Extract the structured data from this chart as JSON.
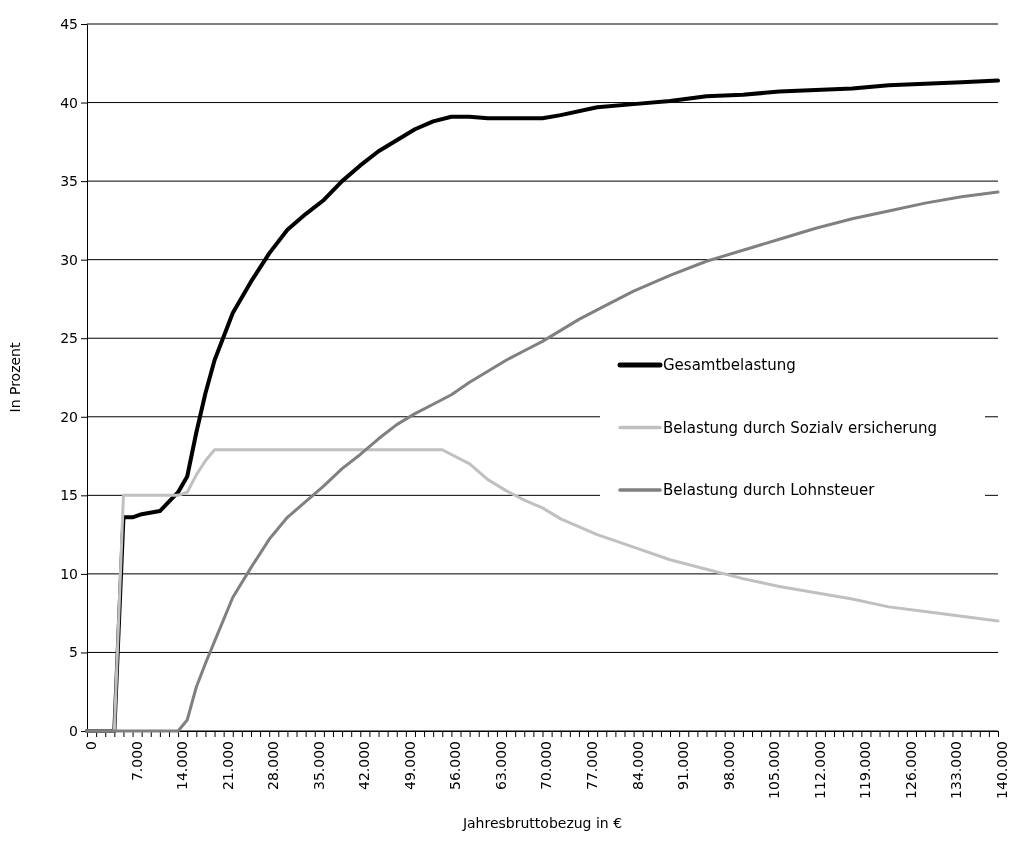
{
  "chart_data": {
    "type": "line",
    "xlabel": "Jahresbruttobezug in €",
    "ylabel": "In Prozent",
    "xlim": [
      0,
      140000
    ],
    "ylim": [
      0,
      45
    ],
    "yticks": [
      0,
      5,
      10,
      15,
      20,
      25,
      30,
      35,
      40,
      45
    ],
    "xticks": [
      0,
      {
        "value": 1400,
        "label": null
      },
      {
        "value": 2800,
        "label": null
      },
      {
        "value": 4200,
        "label": null
      },
      {
        "value": 5600,
        "label": null
      },
      {
        "value": 7000,
        "label": "7.000"
      },
      {
        "value": 8400,
        "label": null
      },
      {
        "value": 9800,
        "label": null
      },
      {
        "value": 11200,
        "label": null
      },
      {
        "value": 12600,
        "label": null
      },
      {
        "value": 14000,
        "label": "14.000"
      },
      {
        "value": 15400,
        "label": null
      },
      {
        "value": 16800,
        "label": null
      },
      {
        "value": 18200,
        "label": null
      },
      {
        "value": 19600,
        "label": null
      },
      {
        "value": 21000,
        "label": "21.000"
      },
      {
        "value": 22400,
        "label": null
      },
      {
        "value": 23800,
        "label": null
      },
      {
        "value": 25200,
        "label": null
      },
      {
        "value": 26600,
        "label": null
      },
      {
        "value": 28000,
        "label": "28.000"
      },
      {
        "value": 29400,
        "label": null
      },
      {
        "value": 30800,
        "label": null
      },
      {
        "value": 32200,
        "label": null
      },
      {
        "value": 33600,
        "label": null
      },
      {
        "value": 35000,
        "label": "35.000"
      },
      {
        "value": 36400,
        "label": null
      },
      {
        "value": 37800,
        "label": null
      },
      {
        "value": 39200,
        "label": null
      },
      {
        "value": 40600,
        "label": null
      },
      {
        "value": 42000,
        "label": "42.000"
      },
      {
        "value": 43400,
        "label": null
      },
      {
        "value": 44800,
        "label": null
      },
      {
        "value": 46200,
        "label": null
      },
      {
        "value": 47600,
        "label": null
      },
      {
        "value": 49000,
        "label": "49.000"
      },
      {
        "value": 50400,
        "label": null
      },
      {
        "value": 51800,
        "label": null
      },
      {
        "value": 53200,
        "label": null
      },
      {
        "value": 54600,
        "label": null
      },
      {
        "value": 56000,
        "label": "56.000"
      },
      {
        "value": 57400,
        "label": null
      },
      {
        "value": 58800,
        "label": null
      },
      {
        "value": 60200,
        "label": null
      },
      {
        "value": 61600,
        "label": null
      },
      {
        "value": 63000,
        "label": "63.000"
      },
      {
        "value": 64400,
        "label": null
      },
      {
        "value": 65800,
        "label": null
      },
      {
        "value": 67200,
        "label": null
      },
      {
        "value": 68600,
        "label": null
      },
      {
        "value": 70000,
        "label": "70.000"
      },
      {
        "value": 71400,
        "label": null
      },
      {
        "value": 72800,
        "label": null
      },
      {
        "value": 74200,
        "label": null
      },
      {
        "value": 75600,
        "label": null
      },
      {
        "value": 77000,
        "label": "77.000"
      },
      {
        "value": 78400,
        "label": null
      },
      {
        "value": 79800,
        "label": null
      },
      {
        "value": 81200,
        "label": null
      },
      {
        "value": 82600,
        "label": null
      },
      {
        "value": 84000,
        "label": "84.000"
      },
      {
        "value": 85400,
        "label": null
      },
      {
        "value": 86800,
        "label": null
      },
      {
        "value": 88200,
        "label": null
      },
      {
        "value": 89600,
        "label": null
      },
      {
        "value": 91000,
        "label": "91.000"
      },
      {
        "value": 92400,
        "label": null
      },
      {
        "value": 93800,
        "label": null
      },
      {
        "value": 95200,
        "label": null
      },
      {
        "value": 96600,
        "label": null
      },
      {
        "value": 98000,
        "label": "98.000"
      },
      {
        "value": 99400,
        "label": null
      },
      {
        "value": 100800,
        "label": null
      },
      {
        "value": 102200,
        "label": null
      },
      {
        "value": 103600,
        "label": null
      },
      {
        "value": 105000,
        "label": "105.000"
      },
      {
        "value": 106400,
        "label": null
      },
      {
        "value": 107800,
        "label": null
      },
      {
        "value": 109200,
        "label": null
      },
      {
        "value": 110600,
        "label": null
      },
      {
        "value": 112000,
        "label": "112.000"
      },
      {
        "value": 113400,
        "label": null
      },
      {
        "value": 114800,
        "label": null
      },
      {
        "value": 116200,
        "label": null
      },
      {
        "value": 117600,
        "label": null
      },
      {
        "value": 119000,
        "label": "119.000"
      },
      {
        "value": 120400,
        "label": null
      },
      {
        "value": 121800,
        "label": null
      },
      {
        "value": 123200,
        "label": null
      },
      {
        "value": 124600,
        "label": null
      },
      {
        "value": 126000,
        "label": "126.000"
      },
      {
        "value": 127400,
        "label": null
      },
      {
        "value": 128800,
        "label": null
      },
      {
        "value": 130200,
        "label": null
      },
      {
        "value": 131600,
        "label": null
      },
      {
        "value": 133000,
        "label": "133.000"
      },
      {
        "value": 134400,
        "label": null
      },
      {
        "value": 135800,
        "label": null
      },
      {
        "value": 137200,
        "label": null
      },
      {
        "value": 138600,
        "label": null
      },
      {
        "value": 140000,
        "label": "140.000"
      }
    ],
    "grid": "y",
    "legend": "right",
    "series": [
      {
        "name": "Gesamtbelastung",
        "color": "#000000",
        "x": [
          0,
          4200,
          5600,
          7000,
          8400,
          11200,
          12600,
          14000,
          15400,
          16800,
          18200,
          19600,
          22400,
          25200,
          28000,
          30800,
          33600,
          36400,
          39200,
          42000,
          44800,
          47600,
          50400,
          53200,
          56000,
          58800,
          61600,
          70000,
          72800,
          78400,
          84000,
          89600,
          95200,
          100800,
          106400,
          112000,
          117600,
          123200,
          128800,
          134400,
          140000
        ],
        "values": [
          0,
          0,
          13.6,
          13.6,
          13.8,
          14.0,
          14.6,
          15.2,
          16.2,
          19.0,
          21.5,
          23.6,
          26.6,
          28.6,
          30.4,
          31.9,
          32.9,
          33.8,
          35.0,
          36.0,
          36.9,
          37.6,
          38.3,
          38.8,
          39.1,
          39.1,
          39.0,
          39.0,
          39.2,
          39.7,
          39.9,
          40.1,
          40.4,
          40.5,
          40.7,
          40.8,
          40.9,
          41.1,
          41.2,
          41.3,
          41.4
        ]
      },
      {
        "name": "Belastung durch Sozialv ersicherung",
        "color": "#c0c0c0",
        "x": [
          0,
          4200,
          5600,
          14000,
          15400,
          16800,
          18200,
          19600,
          54600,
          56000,
          58800,
          61600,
          64400,
          67200,
          70000,
          72800,
          78400,
          84000,
          89600,
          95200,
          100800,
          106400,
          112000,
          117600,
          123200,
          128800,
          134400,
          140000
        ],
        "values": [
          0,
          0,
          15.0,
          15.0,
          15.2,
          16.3,
          17.2,
          17.9,
          17.9,
          17.6,
          17.0,
          16.0,
          15.3,
          14.7,
          14.2,
          13.5,
          12.5,
          11.7,
          10.9,
          10.3,
          9.7,
          9.2,
          8.8,
          8.4,
          7.9,
          7.6,
          7.3,
          7.0
        ]
      },
      {
        "name": "Belastung durch Lohnsteuer",
        "color": "#808080",
        "x": [
          0,
          14000,
          15400,
          16800,
          18200,
          19600,
          22400,
          25200,
          28000,
          30800,
          33600,
          36400,
          39200,
          42000,
          44800,
          47600,
          50400,
          53200,
          56000,
          58800,
          61600,
          64400,
          67200,
          70000,
          72800,
          75600,
          78400,
          84000,
          89600,
          95200,
          100800,
          106400,
          112000,
          117600,
          123200,
          128800,
          134400,
          140000
        ],
        "values": [
          0,
          0,
          0.7,
          2.8,
          4.3,
          5.7,
          8.5,
          10.4,
          12.2,
          13.6,
          14.6,
          15.6,
          16.7,
          17.6,
          18.6,
          19.5,
          20.2,
          20.8,
          21.4,
          22.2,
          22.9,
          23.6,
          24.2,
          24.8,
          25.5,
          26.2,
          26.8,
          28.0,
          29.0,
          29.9,
          30.6,
          31.3,
          32.0,
          32.6,
          33.1,
          33.6,
          34.0,
          34.3
        ]
      }
    ]
  }
}
